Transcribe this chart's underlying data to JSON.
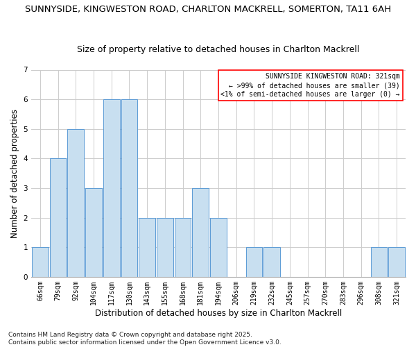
{
  "title_line1": "SUNNYSIDE, KINGWESTON ROAD, CHARLTON MACKRELL, SOMERTON, TA11 6AH",
  "title_line2": "Size of property relative to detached houses in Charlton Mackrell",
  "xlabel": "Distribution of detached houses by size in Charlton Mackrell",
  "ylabel": "Number of detached properties",
  "categories": [
    "66sqm",
    "79sqm",
    "92sqm",
    "104sqm",
    "117sqm",
    "130sqm",
    "143sqm",
    "155sqm",
    "168sqm",
    "181sqm",
    "194sqm",
    "206sqm",
    "219sqm",
    "232sqm",
    "245sqm",
    "257sqm",
    "270sqm",
    "283sqm",
    "296sqm",
    "308sqm",
    "321sqm"
  ],
  "values": [
    1,
    4,
    5,
    3,
    6,
    6,
    2,
    2,
    2,
    3,
    2,
    0,
    1,
    1,
    0,
    0,
    0,
    0,
    0,
    1,
    1
  ],
  "highlight_index": 20,
  "bar_color_normal": "#c8dff0",
  "bar_color_highlight": "#c8dff0",
  "bar_edge_color": "#5b9bd5",
  "background_color": "#ffffff",
  "grid_color": "#cccccc",
  "ylim": [
    0,
    7
  ],
  "yticks": [
    0,
    1,
    2,
    3,
    4,
    5,
    6,
    7
  ],
  "legend_title": "SUNNYSIDE KINGWESTON ROAD: 321sqm",
  "legend_line1": "← >99% of detached houses are smaller (39)",
  "legend_line2": "<1% of semi-detached houses are larger (0) →",
  "footer_line1": "Contains HM Land Registry data © Crown copyright and database right 2025.",
  "footer_line2": "Contains public sector information licensed under the Open Government Licence v3.0.",
  "title_fontsize": 9.5,
  "subtitle_fontsize": 9,
  "axis_label_fontsize": 8.5,
  "tick_fontsize": 7,
  "legend_fontsize": 7,
  "footer_fontsize": 6.5
}
